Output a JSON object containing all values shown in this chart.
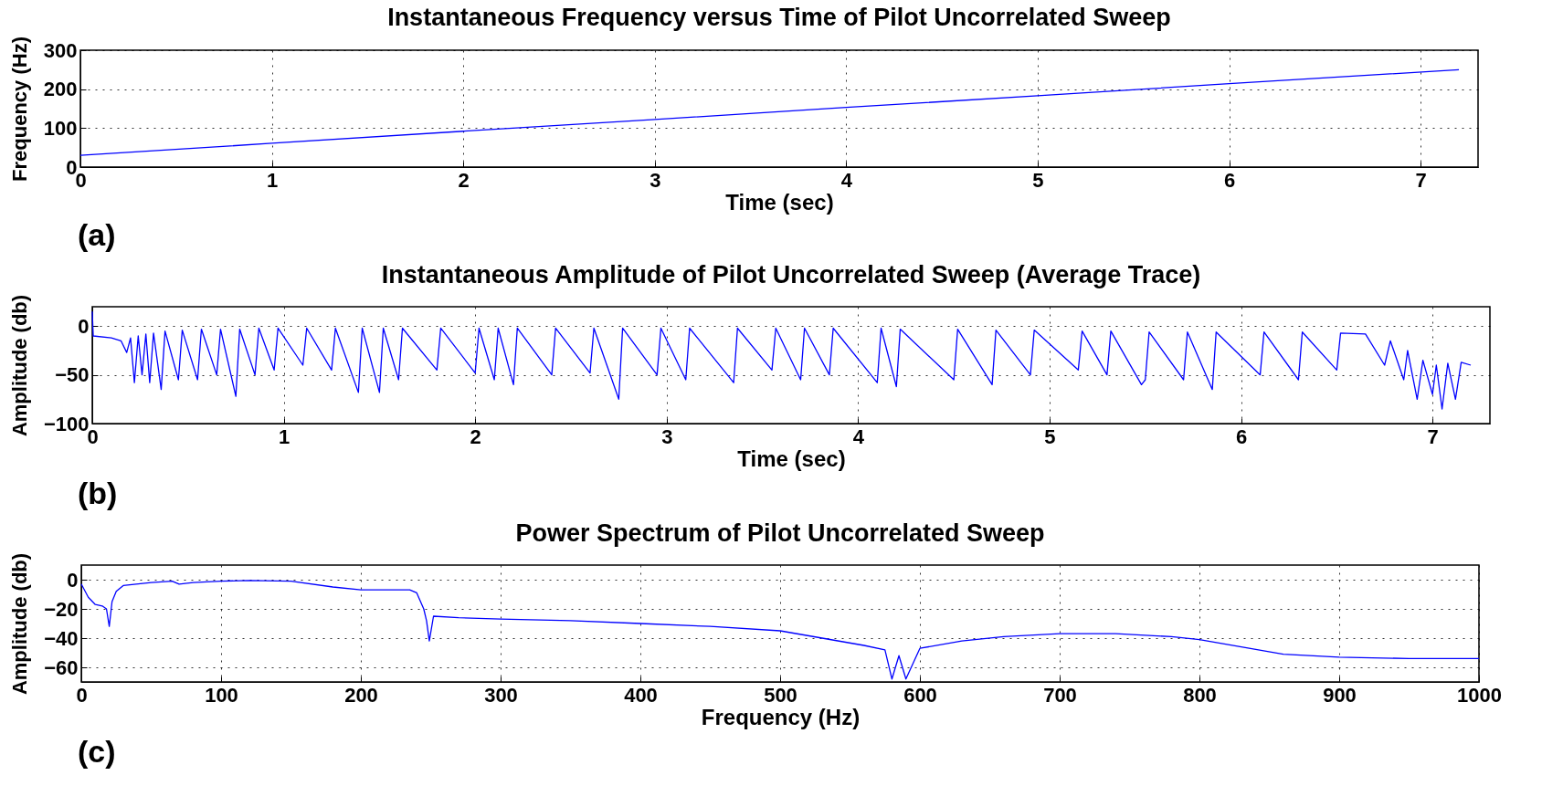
{
  "chart_data": [
    {
      "type": "line",
      "title": "Instantaneous Frequency versus Time of Pilot Uncorrelated Sweep",
      "xlabel": "Time (sec)",
      "ylabel": "Frequency (Hz)",
      "annotations": [
        "(a)"
      ],
      "x": [
        0,
        1,
        2,
        3,
        4,
        5,
        6,
        7.2
      ],
      "series": [
        {
          "color": "#0000ff",
          "values": [
            30,
            61,
            92,
            122,
            153,
            183,
            214,
            250
          ]
        }
      ],
      "xlim": [
        0,
        7.3
      ],
      "xticks": [
        0,
        1,
        2,
        3,
        4,
        5,
        6,
        7
      ],
      "ylim": [
        0,
        300
      ],
      "yticks": [
        0,
        100,
        200,
        300
      ],
      "grid": true,
      "line_style": "solid"
    },
    {
      "type": "line",
      "title": "Instantaneous Amplitude of Pilot Uncorrelated Sweep (Average Trace)",
      "xlabel": "Time (sec)",
      "ylabel": "Amplitude (db)",
      "annotations": [
        "(b)"
      ],
      "x": [
        0,
        0.005,
        0.1,
        0.15,
        0.18,
        0.2,
        0.22,
        0.24,
        0.26,
        0.28,
        0.3,
        0.32,
        0.36,
        0.38,
        0.45,
        0.47,
        0.55,
        0.57,
        0.65,
        0.67,
        0.75,
        0.77,
        0.85,
        0.87,
        0.95,
        0.97,
        1.1,
        1.12,
        1.25,
        1.27,
        1.39,
        1.41,
        1.5,
        1.52,
        1.6,
        1.62,
        1.8,
        1.82,
        2.0,
        2.02,
        2.1,
        2.12,
        2.2,
        2.22,
        2.4,
        2.42,
        2.6,
        2.62,
        2.75,
        2.77,
        2.95,
        2.97,
        3.1,
        3.12,
        3.35,
        3.37,
        3.55,
        3.57,
        3.7,
        3.72,
        3.85,
        3.87,
        4.1,
        4.12,
        4.2,
        4.22,
        4.5,
        4.52,
        4.7,
        4.72,
        4.9,
        4.92,
        5.15,
        5.17,
        5.3,
        5.32,
        5.48,
        5.5,
        5.52,
        5.7,
        5.72,
        5.85,
        5.87,
        6.1,
        6.12,
        6.3,
        6.32,
        6.5,
        6.52,
        6.65,
        6.75,
        6.78,
        6.85,
        6.87,
        6.92,
        6.95,
        7.0,
        7.02,
        7.05,
        7.08,
        7.12,
        7.15,
        7.2
      ],
      "series": [
        {
          "color": "#0000ff",
          "values": [
            15,
            -10,
            -12,
            -15,
            -27,
            -12,
            -58,
            -10,
            -50,
            -8,
            -58,
            -7,
            -65,
            -5,
            -55,
            -4,
            -55,
            -3,
            -50,
            -3,
            -72,
            -3,
            -50,
            -2,
            -45,
            -2,
            -40,
            -2,
            -45,
            -2,
            -68,
            -2,
            -68,
            -2,
            -55,
            -2,
            -45,
            -2,
            -48,
            -2,
            -55,
            -2,
            -60,
            -2,
            -50,
            -2,
            -48,
            -2,
            -75,
            -2,
            -50,
            -2,
            -55,
            -2,
            -58,
            -2,
            -45,
            -2,
            -55,
            -2,
            -50,
            -2,
            -58,
            -2,
            -62,
            -3,
            -55,
            -3,
            -60,
            -4,
            -50,
            -4,
            -45,
            -5,
            -50,
            -5,
            -60,
            -55,
            -6,
            -55,
            -6,
            -65,
            -6,
            -50,
            -6,
            -55,
            -6,
            -45,
            -7,
            -8,
            -40,
            -15,
            -55,
            -25,
            -75,
            -35,
            -70,
            -40,
            -85,
            -38,
            -75,
            -37,
            -40
          ]
        }
      ],
      "xlim": [
        0,
        7.3
      ],
      "xticks": [
        0,
        1,
        2,
        3,
        4,
        5,
        6,
        7
      ],
      "ylim": [
        -100,
        20
      ],
      "yticks": [
        -100,
        -50,
        0
      ],
      "grid": true,
      "line_style": "solid"
    },
    {
      "type": "line",
      "title": "Power Spectrum of Pilot Uncorrelated Sweep",
      "xlabel": "Frequency (Hz)",
      "ylabel": "Amplitude (db)",
      "annotations": [
        "(c)"
      ],
      "x": [
        0,
        5,
        10,
        15,
        18,
        20,
        22,
        25,
        30,
        50,
        65,
        70,
        80,
        100,
        120,
        150,
        180,
        200,
        235,
        240,
        245,
        247,
        249,
        252,
        270,
        300,
        350,
        400,
        450,
        500,
        530,
        560,
        575,
        580,
        585,
        590,
        600,
        630,
        660,
        700,
        740,
        780,
        800,
        830,
        860,
        900,
        950,
        1000
      ],
      "series": [
        {
          "color": "#0000ff",
          "values": [
            -3,
            -12,
            -17,
            -18,
            -20,
            -32,
            -15,
            -8,
            -4,
            -2,
            -1,
            -3,
            -2,
            -1,
            -0.5,
            -1,
            -5,
            -7,
            -7,
            -9,
            -20,
            -28,
            -42,
            -25,
            -26,
            -27,
            -28,
            -30,
            -32,
            -35,
            -40,
            -45,
            -48,
            -68,
            -52,
            -68,
            -47,
            -42,
            -39,
            -37,
            -37,
            -39,
            -41,
            -46,
            -51,
            -53,
            -54,
            -54
          ]
        }
      ],
      "xlim": [
        0,
        1000
      ],
      "xticks": [
        0,
        100,
        200,
        300,
        400,
        500,
        600,
        700,
        800,
        900,
        1000
      ],
      "ylim": [
        -70,
        10
      ],
      "yticks": [
        -60,
        -40,
        -20,
        0
      ],
      "grid": true,
      "line_style": "solid"
    }
  ]
}
